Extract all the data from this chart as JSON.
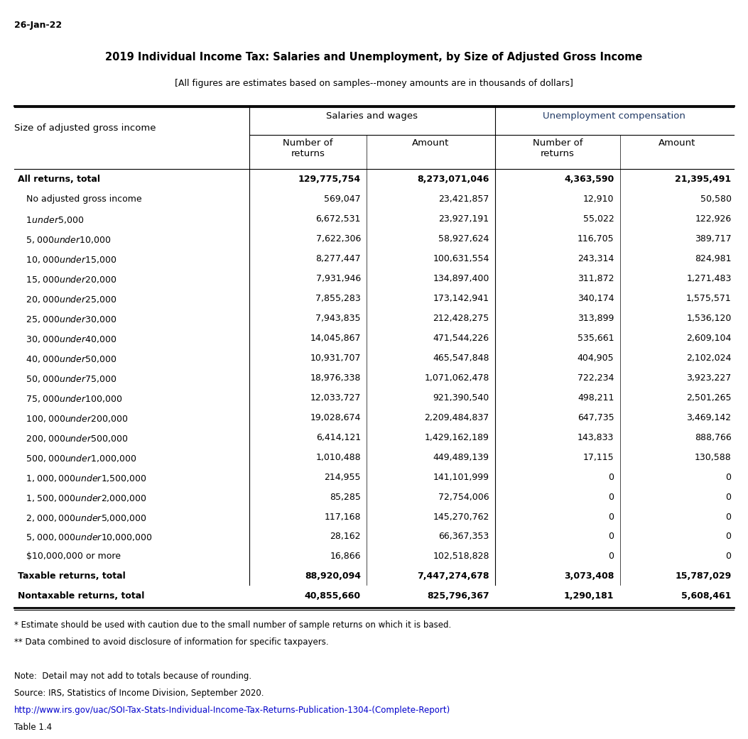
{
  "date_label": "26-Jan-22",
  "title": "2019 Individual Income Tax: Salaries and Unemployment, by Size of Adjusted Gross Income",
  "subtitle": "[All figures are estimates based on samples--money amounts are in thousands of dollars]",
  "col_headers": [
    "Size of adjusted gross income",
    "Number of\nreturns",
    "Amount",
    "Number of\nreturns",
    "Amount"
  ],
  "group_headers": [
    "Salaries and wages",
    "Unemployment compensation"
  ],
  "rows": [
    {
      "label": "All returns, total",
      "bold": true,
      "indent": false,
      "sw_nr": "129,775,754",
      "sw_amt": "8,273,071,046",
      "uc_nr": "4,363,590",
      "uc_amt": "21,395,491"
    },
    {
      "label": "No adjusted gross income",
      "bold": false,
      "indent": true,
      "sw_nr": "569,047",
      "sw_amt": "23,421,857",
      "uc_nr": "12,910",
      "uc_amt": "50,580"
    },
    {
      "label": "$1 under $5,000",
      "bold": false,
      "indent": true,
      "sw_nr": "6,672,531",
      "sw_amt": "23,927,191",
      "uc_nr": "55,022",
      "uc_amt": "122,926"
    },
    {
      "label": "$5,000 under $10,000",
      "bold": false,
      "indent": true,
      "sw_nr": "7,622,306",
      "sw_amt": "58,927,624",
      "uc_nr": "116,705",
      "uc_amt": "389,717"
    },
    {
      "label": "$10,000 under $15,000",
      "bold": false,
      "indent": true,
      "sw_nr": "8,277,447",
      "sw_amt": "100,631,554",
      "uc_nr": "243,314",
      "uc_amt": "824,981"
    },
    {
      "label": "$15,000 under $20,000",
      "bold": false,
      "indent": true,
      "sw_nr": "7,931,946",
      "sw_amt": "134,897,400",
      "uc_nr": "311,872",
      "uc_amt": "1,271,483"
    },
    {
      "label": "$20,000 under $25,000",
      "bold": false,
      "indent": true,
      "sw_nr": "7,855,283",
      "sw_amt": "173,142,941",
      "uc_nr": "340,174",
      "uc_amt": "1,575,571"
    },
    {
      "label": "$25,000 under $30,000",
      "bold": false,
      "indent": true,
      "sw_nr": "7,943,835",
      "sw_amt": "212,428,275",
      "uc_nr": "313,899",
      "uc_amt": "1,536,120"
    },
    {
      "label": "$30,000 under $40,000",
      "bold": false,
      "indent": true,
      "sw_nr": "14,045,867",
      "sw_amt": "471,544,226",
      "uc_nr": "535,661",
      "uc_amt": "2,609,104"
    },
    {
      "label": "$40,000 under $50,000",
      "bold": false,
      "indent": true,
      "sw_nr": "10,931,707",
      "sw_amt": "465,547,848",
      "uc_nr": "404,905",
      "uc_amt": "2,102,024"
    },
    {
      "label": "$50,000 under $75,000",
      "bold": false,
      "indent": true,
      "sw_nr": "18,976,338",
      "sw_amt": "1,071,062,478",
      "uc_nr": "722,234",
      "uc_amt": "3,923,227"
    },
    {
      "label": "$75,000 under $100,000",
      "bold": false,
      "indent": true,
      "sw_nr": "12,033,727",
      "sw_amt": "921,390,540",
      "uc_nr": "498,211",
      "uc_amt": "2,501,265"
    },
    {
      "label": "$100,000 under $200,000",
      "bold": false,
      "indent": true,
      "sw_nr": "19,028,674",
      "sw_amt": "2,209,484,837",
      "uc_nr": "647,735",
      "uc_amt": "3,469,142"
    },
    {
      "label": "$200,000 under $500,000",
      "bold": false,
      "indent": true,
      "sw_nr": "6,414,121",
      "sw_amt": "1,429,162,189",
      "uc_nr": "143,833",
      "uc_amt": "888,766"
    },
    {
      "label": "$500,000 under $1,000,000",
      "bold": false,
      "indent": true,
      "sw_nr": "1,010,488",
      "sw_amt": "449,489,139",
      "uc_nr": "17,115",
      "uc_amt": "130,588"
    },
    {
      "label": "$1,000,000 under $1,500,000",
      "bold": false,
      "indent": true,
      "sw_nr": "214,955",
      "sw_amt": "141,101,999",
      "uc_nr": "0",
      "uc_amt": "0"
    },
    {
      "label": "$1,500,000 under $2,000,000",
      "bold": false,
      "indent": true,
      "sw_nr": "85,285",
      "sw_amt": "72,754,006",
      "uc_nr": "0",
      "uc_amt": "0"
    },
    {
      "label": "$2,000,000 under $5,000,000",
      "bold": false,
      "indent": true,
      "sw_nr": "117,168",
      "sw_amt": "145,270,762",
      "uc_nr": "0",
      "uc_amt": "0"
    },
    {
      "label": "$5,000,000 under $10,000,000",
      "bold": false,
      "indent": true,
      "sw_nr": "28,162",
      "sw_amt": "66,367,353",
      "uc_nr": "0",
      "uc_amt": "0"
    },
    {
      "label": "$10,000,000 or more",
      "bold": false,
      "indent": true,
      "sw_nr": "16,866",
      "sw_amt": "102,518,828",
      "uc_nr": "0",
      "uc_amt": "0"
    },
    {
      "label": "Taxable returns, total",
      "bold": true,
      "indent": false,
      "sw_nr": "88,920,094",
      "sw_amt": "7,447,274,678",
      "uc_nr": "3,073,408",
      "uc_amt": "15,787,029"
    },
    {
      "label": "Nontaxable returns, total",
      "bold": true,
      "indent": false,
      "sw_nr": "40,855,660",
      "sw_amt": "825,796,367",
      "uc_nr": "1,290,181",
      "uc_amt": "5,608,461"
    }
  ],
  "footnotes": [
    "* Estimate should be used with caution due to the small number of sample returns on which it is based.",
    "** Data combined to avoid disclosure of information for specific taxpayers.",
    "",
    "Note:  Detail may not add to totals because of rounding.",
    "Source: IRS, Statistics of Income Division, September 2020."
  ],
  "link": "http://www.irs.gov/uac/SOI-Tax-Stats-Individual-Income-Tax-Returns-Publication-1304-(Complete-Report)",
  "table_label": "Table 1.4",
  "bg_color": "#ffffff",
  "text_color": "#000000",
  "header_color": "#1f3864",
  "link_color": "#0000cc",
  "unemployment_color": "#1f3864"
}
